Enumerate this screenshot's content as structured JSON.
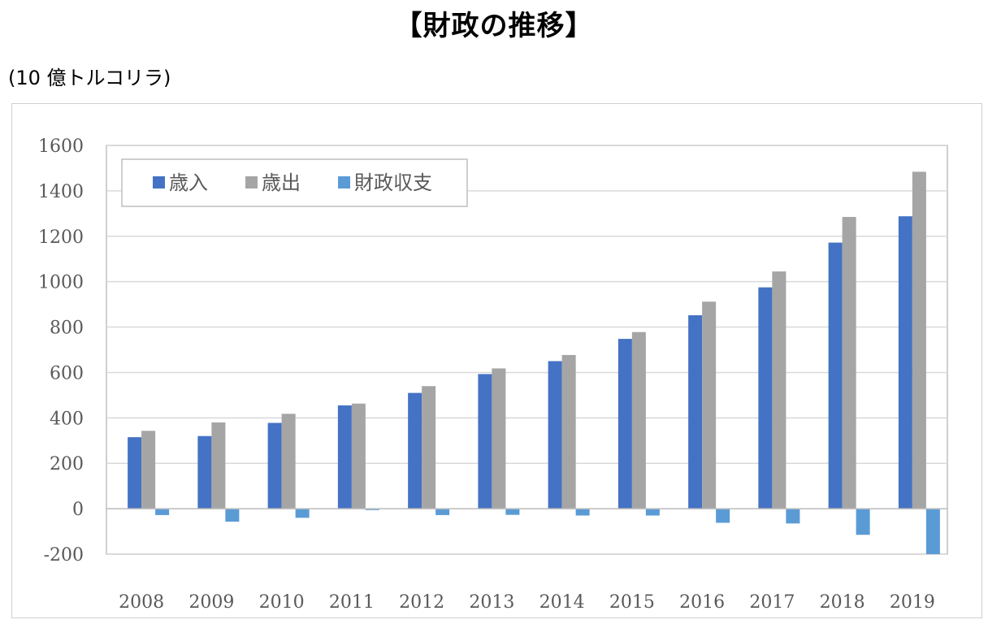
{
  "page": {
    "title": "【財政の推移】",
    "unit_label": "(10 億トルコリラ)"
  },
  "chart_data": {
    "type": "bar",
    "categories": [
      "2008",
      "2009",
      "2010",
      "2011",
      "2012",
      "2013",
      "2014",
      "2015",
      "2016",
      "2017",
      "2018",
      "2019"
    ],
    "series": [
      {
        "name": "歳入",
        "color": "#4472c4",
        "values": [
          315,
          320,
          378,
          455,
          510,
          593,
          650,
          748,
          852,
          975,
          1172,
          1288
        ]
      },
      {
        "name": "歳出",
        "color": "#a5a5a5",
        "values": [
          343,
          380,
          418,
          463,
          540,
          618,
          677,
          778,
          912,
          1045,
          1285,
          1484
        ]
      },
      {
        "name": "財政収支",
        "color": "#5b9bd5",
        "values": [
          -28,
          -57,
          -40,
          -6,
          -28,
          -27,
          -30,
          -30,
          -62,
          -65,
          -115,
          -200
        ]
      }
    ],
    "ylim": [
      -200,
      1600
    ],
    "yticks": [
      "1600",
      "1400",
      "1200",
      "1000",
      "800",
      "600",
      "400",
      "200",
      "0",
      "-200"
    ],
    "grid": true,
    "legend_position": "top-left"
  }
}
